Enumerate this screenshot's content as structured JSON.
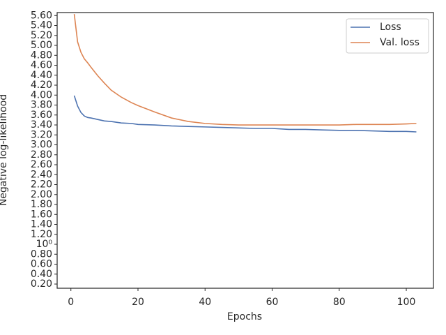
{
  "chart_data": {
    "type": "line",
    "xlabel": "Epochs",
    "ylabel": "Negative log-likelihood",
    "x": [
      1,
      2,
      3,
      4,
      5,
      6,
      8,
      10,
      12,
      15,
      18,
      20,
      25,
      30,
      35,
      40,
      45,
      50,
      55,
      60,
      65,
      70,
      75,
      80,
      85,
      90,
      95,
      100,
      103
    ],
    "series": [
      {
        "name": "Loss",
        "color": "#4c72b0",
        "values": [
          3.99,
          3.78,
          3.65,
          3.58,
          3.55,
          3.54,
          3.51,
          3.48,
          3.47,
          3.44,
          3.43,
          3.41,
          3.4,
          3.38,
          3.37,
          3.36,
          3.35,
          3.34,
          3.33,
          3.33,
          3.31,
          3.31,
          3.3,
          3.29,
          3.29,
          3.28,
          3.27,
          3.27,
          3.26
        ]
      },
      {
        "name": "Val. loss",
        "color": "#dd8452",
        "values": [
          5.63,
          5.07,
          4.86,
          4.73,
          4.65,
          4.56,
          4.39,
          4.24,
          4.1,
          3.96,
          3.85,
          3.79,
          3.66,
          3.54,
          3.47,
          3.43,
          3.41,
          3.4,
          3.4,
          3.4,
          3.4,
          3.4,
          3.4,
          3.4,
          3.41,
          3.41,
          3.41,
          3.42,
          3.43
        ]
      }
    ],
    "xlim": [
      -4.1,
      108.1
    ],
    "ylim": [
      0.116,
      5.66
    ],
    "xticks": [
      0,
      20,
      40,
      60,
      80,
      100
    ],
    "yticks": [
      {
        "value": 0.2,
        "label": "0.20"
      },
      {
        "value": 0.4,
        "label": "0.40"
      },
      {
        "value": 0.6,
        "label": "0.60"
      },
      {
        "value": 0.8,
        "label": "0.80"
      },
      {
        "value": 1.0,
        "label": "10⁰"
      },
      {
        "value": 1.2,
        "label": "1.20"
      },
      {
        "value": 1.4,
        "label": "1.40"
      },
      {
        "value": 1.6,
        "label": "1.60"
      },
      {
        "value": 1.8,
        "label": "1.80"
      },
      {
        "value": 2.0,
        "label": "2.00"
      },
      {
        "value": 2.2,
        "label": "2.20"
      },
      {
        "value": 2.4,
        "label": "2.40"
      },
      {
        "value": 2.6,
        "label": "2.60"
      },
      {
        "value": 2.8,
        "label": "2.80"
      },
      {
        "value": 3.0,
        "label": "3.00"
      },
      {
        "value": 3.2,
        "label": "3.20"
      },
      {
        "value": 3.4,
        "label": "3.40"
      },
      {
        "value": 3.6,
        "label": "3.60"
      },
      {
        "value": 3.8,
        "label": "3.80"
      },
      {
        "value": 4.0,
        "label": "4.00"
      },
      {
        "value": 4.2,
        "label": "4.20"
      },
      {
        "value": 4.4,
        "label": "4.40"
      },
      {
        "value": 4.6,
        "label": "4.60"
      },
      {
        "value": 4.8,
        "label": "4.80"
      },
      {
        "value": 5.0,
        "label": "5.00"
      },
      {
        "value": 5.2,
        "label": "5.20"
      },
      {
        "value": 5.4,
        "label": "5.40"
      },
      {
        "value": 5.6,
        "label": "5.60"
      }
    ],
    "legend": "upper right"
  }
}
